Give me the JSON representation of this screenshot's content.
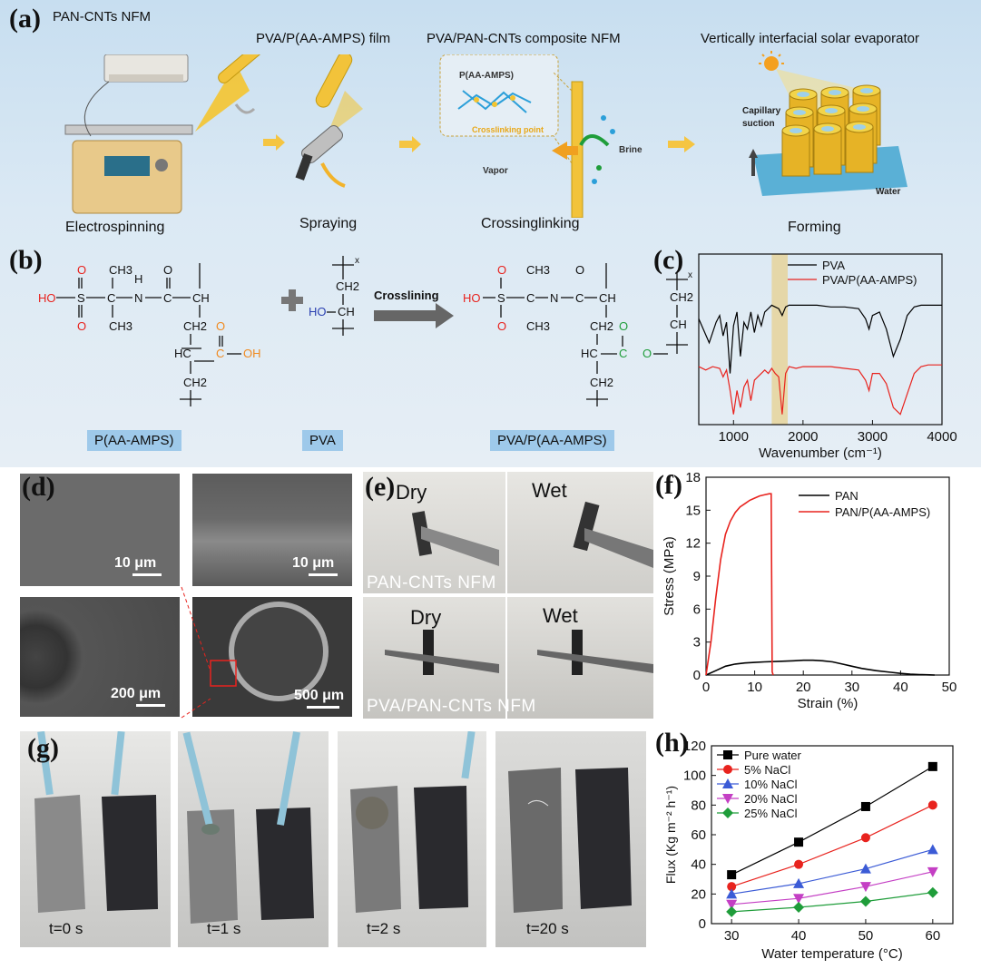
{
  "panel_letters": {
    "a": "(a)",
    "b": "(b)",
    "c": "(c)",
    "d": "(d)",
    "e": "(e)",
    "f": "(f)",
    "g": "(g)",
    "h": "(h)"
  },
  "panel_a": {
    "titles": {
      "electrospinning": "PAN-CNTs NFM",
      "spraying": "PVA/P(AA-AMPS) film",
      "crosslinking": "PVA/PAN-CNTs composite NFM",
      "forming": "Vertically interfacial solar evaporator"
    },
    "steps": {
      "electrospinning": "Electrospinning",
      "spraying": "Spraying",
      "crosslinking": "Crossinglinking",
      "forming": "Forming"
    },
    "inset": {
      "polymer": "P(AA-AMPS)",
      "crosslinking_point": "Crosslinking point",
      "brine": "Brine",
      "vapor": "Vapor"
    },
    "evaporator": {
      "capillary": "Capillary",
      "suction": "suction",
      "water": "Water"
    },
    "colors": {
      "yellow": "#f4c430",
      "arrow": "#f5c542",
      "base": "#5ab0d6"
    }
  },
  "panel_b": {
    "labels": {
      "paa": "P(AA-AMPS)",
      "pva": "PVA",
      "product": "PVA/P(AA-AMPS)"
    },
    "reaction": "Crosslining",
    "atoms": {
      "HO": "HO",
      "S": "S",
      "O": "O",
      "C": "C",
      "N": "N",
      "H": "H",
      "CH3": "CH3",
      "CH": "CH",
      "CH2": "CH2",
      "HC": "HC",
      "OH": "OH",
      "x": "x"
    }
  },
  "panel_d": {
    "scales": [
      "10 μm",
      "10 μm",
      "200 μm",
      "500 μm"
    ]
  },
  "panel_e": {
    "dry": "Dry",
    "wet": "Wet",
    "row1_caption": "PAN-CNTs NFM",
    "row2_caption": "PVA/PAN-CNTs NFM"
  },
  "panel_g": {
    "times": [
      "t=0 s",
      "t=1 s",
      "t=2 s",
      "t=20 s"
    ]
  },
  "chart_data": [
    {
      "id": "c",
      "type": "line",
      "xlabel": "Wavenumber (cm⁻¹)",
      "xlim": [
        500,
        4000
      ],
      "xticks": [
        1000,
        2000,
        3000,
        4000
      ],
      "highlight_band": [
        1550,
        1780
      ],
      "legend": [
        "PVA",
        "PVA/P(AA-AMPS)"
      ],
      "legend_placement": "top-right",
      "series": [
        {
          "name": "PVA",
          "color": "#000000",
          "x": [
            500,
            650,
            750,
            800,
            850,
            900,
            950,
            1000,
            1050,
            1100,
            1150,
            1200,
            1250,
            1300,
            1350,
            1400,
            1450,
            1500,
            1550,
            1650,
            1700,
            1750,
            1800,
            1900,
            2000,
            2200,
            2400,
            2600,
            2800,
            2900,
            2950,
            3000,
            3100,
            3200,
            3300,
            3400,
            3500,
            3600,
            3700,
            3800,
            4000
          ],
          "y": [
            0.62,
            0.48,
            0.6,
            0.64,
            0.52,
            0.6,
            0.3,
            0.58,
            0.66,
            0.4,
            0.6,
            0.56,
            0.66,
            0.54,
            0.64,
            0.58,
            0.66,
            0.68,
            0.7,
            0.68,
            0.64,
            0.69,
            0.7,
            0.7,
            0.7,
            0.7,
            0.69,
            0.69,
            0.68,
            0.62,
            0.56,
            0.64,
            0.66,
            0.56,
            0.4,
            0.5,
            0.64,
            0.69,
            0.7,
            0.7,
            0.7
          ]
        },
        {
          "name": "PVA/P(AA-AMPS)",
          "color": "#e8231e",
          "x": [
            500,
            600,
            700,
            800,
            850,
            900,
            950,
            1000,
            1050,
            1100,
            1150,
            1200,
            1250,
            1300,
            1400,
            1450,
            1500,
            1550,
            1600,
            1650,
            1700,
            1750,
            1800,
            1900,
            2000,
            2200,
            2400,
            2600,
            2800,
            2900,
            2950,
            3000,
            3100,
            3200,
            3300,
            3400,
            3500,
            3600,
            3700,
            3800,
            4000
          ],
          "y": [
            0.34,
            0.32,
            0.34,
            0.33,
            0.28,
            0.32,
            0.2,
            0.06,
            0.2,
            0.1,
            0.22,
            0.26,
            0.14,
            0.26,
            0.3,
            0.32,
            0.3,
            0.33,
            0.3,
            0.28,
            0.06,
            0.3,
            0.34,
            0.33,
            0.34,
            0.34,
            0.34,
            0.33,
            0.32,
            0.26,
            0.2,
            0.3,
            0.3,
            0.24,
            0.1,
            0.06,
            0.18,
            0.3,
            0.34,
            0.35,
            0.35
          ]
        }
      ]
    },
    {
      "id": "f",
      "type": "line",
      "xlabel": "Strain (%)",
      "ylabel": "Stress (MPa)",
      "xlim": [
        0,
        50
      ],
      "ylim": [
        0,
        18
      ],
      "xticks": [
        0,
        10,
        20,
        30,
        40,
        50
      ],
      "yticks": [
        0,
        3,
        6,
        9,
        12,
        15,
        18
      ],
      "legend": [
        "PAN",
        "PAN/P(AA-AMPS)"
      ],
      "legend_placement": "top-right",
      "series": [
        {
          "name": "PAN",
          "color": "#000000",
          "x": [
            0,
            2,
            4,
            6,
            8,
            10,
            12,
            15,
            18,
            20,
            22,
            24,
            26,
            28,
            30,
            32,
            35,
            38,
            40,
            42,
            44,
            46,
            47
          ],
          "y": [
            0,
            0.4,
            0.8,
            1.0,
            1.1,
            1.15,
            1.2,
            1.25,
            1.3,
            1.35,
            1.35,
            1.3,
            1.2,
            1.0,
            0.8,
            0.6,
            0.4,
            0.25,
            0.15,
            0.08,
            0.04,
            0.02,
            0
          ]
        },
        {
          "name": "PAN/P(AA-AMPS)",
          "color": "#e8231e",
          "x": [
            0,
            1,
            2,
            3,
            4,
            5,
            6,
            7,
            8,
            9,
            10,
            11,
            12,
            13,
            13.4,
            13.6,
            13.8
          ],
          "y": [
            0,
            3,
            7,
            10.5,
            12.8,
            14.0,
            14.8,
            15.3,
            15.6,
            15.9,
            16.1,
            16.3,
            16.4,
            16.5,
            16.5,
            0.3,
            0
          ]
        }
      ]
    },
    {
      "id": "h",
      "type": "line",
      "xlabel": "Water temperature (°C)",
      "ylabel": "Flux (Kg m⁻² h⁻¹)",
      "xlim": [
        27,
        63
      ],
      "ylim": [
        0,
        120
      ],
      "xticks": [
        30,
        40,
        50,
        60
      ],
      "yticks": [
        0,
        20,
        40,
        60,
        80,
        100,
        120
      ],
      "x": [
        30,
        40,
        50,
        60
      ],
      "legend_placement": "top-left",
      "series": [
        {
          "name": "Pure water",
          "color": "#000000",
          "marker": "square",
          "values": [
            33,
            55,
            79,
            106
          ]
        },
        {
          "name": "5% NaCl",
          "color": "#e8231e",
          "marker": "circle",
          "values": [
            25,
            40,
            58,
            80
          ]
        },
        {
          "name": "10% NaCl",
          "color": "#3b5bd6",
          "marker": "triangle-up",
          "values": [
            20,
            27,
            37,
            50
          ]
        },
        {
          "name": "20% NaCl",
          "color": "#c43fc4",
          "marker": "triangle-down",
          "values": [
            13,
            17,
            25,
            35
          ]
        },
        {
          "name": "25% NaCl",
          "color": "#1f9d3a",
          "marker": "diamond",
          "values": [
            8,
            11,
            15,
            21
          ]
        }
      ]
    }
  ]
}
